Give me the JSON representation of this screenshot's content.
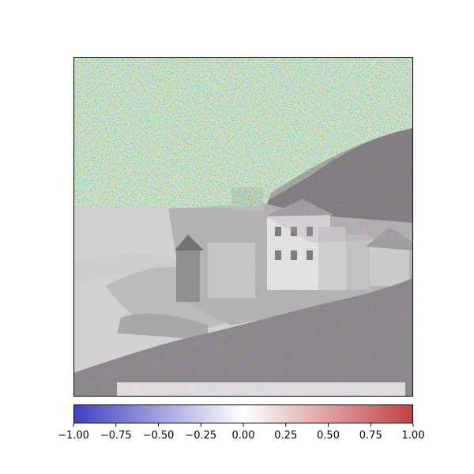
{
  "chart_data": {
    "type": "heatmap",
    "title": "",
    "xlabel": "",
    "ylabel": "",
    "colormap": "bwr",
    "overlay_alpha": 0.5,
    "background": "grayscale photograph of a harbor village with houses on a hillside",
    "value_range": [
      -1.0,
      1.0
    ],
    "colorbar": {
      "orientation": "horizontal",
      "ticks": [
        -1.0,
        -0.75,
        -0.5,
        -0.25,
        0.0,
        0.25,
        0.5,
        0.75,
        1.0
      ],
      "tick_labels": [
        "−1.00",
        "−0.75",
        "−0.50",
        "−0.25",
        "0.00",
        "0.25",
        "0.50",
        "0.75",
        "1.00"
      ]
    },
    "colors": {
      "negative": "#0000ff",
      "zero": "#ffffff",
      "positive": "#ff0000"
    }
  }
}
